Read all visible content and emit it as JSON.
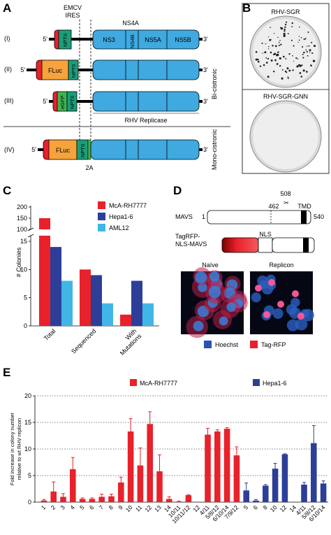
{
  "panel_a": {
    "letter": "A",
    "emcv": "EMCV",
    "ires": "IRES",
    "ns4a": "NS4A",
    "rows": [
      {
        "id": "(I)",
        "p5": "5'",
        "p3": "3'",
        "neo": "NPTII",
        "n1": "NS3",
        "n2": "NS4B",
        "n3": "NS5A",
        "n4": "NS5B"
      },
      {
        "id": "(II)",
        "p5": "5'",
        "p3": "3'",
        "fluc": "FLuc",
        "neo": "NPTII"
      },
      {
        "id": "(III)",
        "p5": "5'",
        "p3": "3'",
        "egfp": "eGFP",
        "neo": "NPTII"
      },
      {
        "id": "(IV)",
        "p5": "5'",
        "p3": "3'",
        "fluc": "FLuc",
        "neo": "NPTII"
      }
    ],
    "bicistronic": "Bi-cistronic",
    "monocistronic": "Mono-cistronic",
    "replicase": "RHV Replicase",
    "label_2a": "2A"
  },
  "panel_b": {
    "letter": "B",
    "dish1": "RHV-SGR",
    "dish2": "RHV-SGR-GNN"
  },
  "panel_c": {
    "letter": "C",
    "legend": [
      "McA-RH7777",
      "Hepa1-6",
      "AML12"
    ],
    "colors": {
      "red": "#e8212a",
      "blue": "#2d3e98",
      "light": "#41b6e6",
      "teal": "#1a9e7a",
      "orange": "#f6a33c"
    },
    "chart_data": {
      "type": "bar",
      "ylabel": "# Colonies",
      "categories": [
        "Total",
        "Sequenced",
        "With Mutations"
      ],
      "yticks_low": [
        "0",
        "5",
        "10",
        "15"
      ],
      "yticks_high": [
        "100",
        "150",
        "200"
      ],
      "series": [
        {
          "name": "McA-RH7777",
          "values": [
            150,
            10,
            2
          ]
        },
        {
          "name": "Hepa1-6",
          "values": [
            14,
            9,
            8
          ]
        },
        {
          "name": "AML12",
          "values": [
            8,
            4,
            4
          ]
        }
      ]
    }
  },
  "panel_d": {
    "letter": "D",
    "num508": "508",
    "num462": "462",
    "tmd": "TMD",
    "mavs": "MAVS",
    "one": "1",
    "num540": "540",
    "tagrfp_line1": "TagRFP-",
    "tagrfp_line2": "NLS-MAVS",
    "nls": "NLS",
    "naive": "Naïve",
    "replicon": "Replicon",
    "hoechst": "Hoechst",
    "tagrfp": "Tag-RFP"
  },
  "panel_e": {
    "letter": "E",
    "chart_data": {
      "type": "bar",
      "ylabel": "Fold increase in colony number relative to wt RHV replicon",
      "ylim": [
        0,
        20
      ],
      "yticks": [
        "0",
        "5",
        "10",
        "15",
        "20"
      ],
      "series": [
        {
          "name": "McA-RH7777",
          "categories": [
            "1",
            "2",
            "3",
            "4",
            "5",
            "6",
            "7",
            "8",
            "9",
            "10",
            "11",
            "12",
            "13",
            "14",
            "10/11",
            "10/11/12",
            "12",
            "4/11",
            "5/8/12",
            "6/10/14",
            "7/9/12"
          ],
          "values": [
            0.3,
            2.0,
            1.0,
            6.2,
            0.6,
            0.6,
            1.0,
            1.1,
            3.7,
            13.3,
            6.9,
            14.7,
            5.8,
            0.6,
            0.1,
            1.3,
            0,
            12.7,
            13.3,
            13.8,
            8.8
          ],
          "errors": [
            0.2,
            1.8,
            0.6,
            2.2,
            0.2,
            0.2,
            0.5,
            0.4,
            1.0,
            2.4,
            3.3,
            2.3,
            3.1,
            0.4,
            0.1,
            0.1,
            0,
            1.2,
            0.3,
            0.2,
            1.6
          ]
        },
        {
          "name": "Hepa1-6",
          "categories": [
            "5",
            "6",
            "8",
            "10",
            "12",
            "14",
            "4/11",
            "5/8/12",
            "6/10/14"
          ],
          "values": [
            2.2,
            0.3,
            3.1,
            6.3,
            9.0,
            0,
            3.3,
            11.1,
            3.5
          ],
          "errors": [
            1.4,
            0.2,
            0.2,
            1.0,
            0.1,
            0,
            0.4,
            3.3,
            0.5
          ]
        }
      ]
    }
  }
}
